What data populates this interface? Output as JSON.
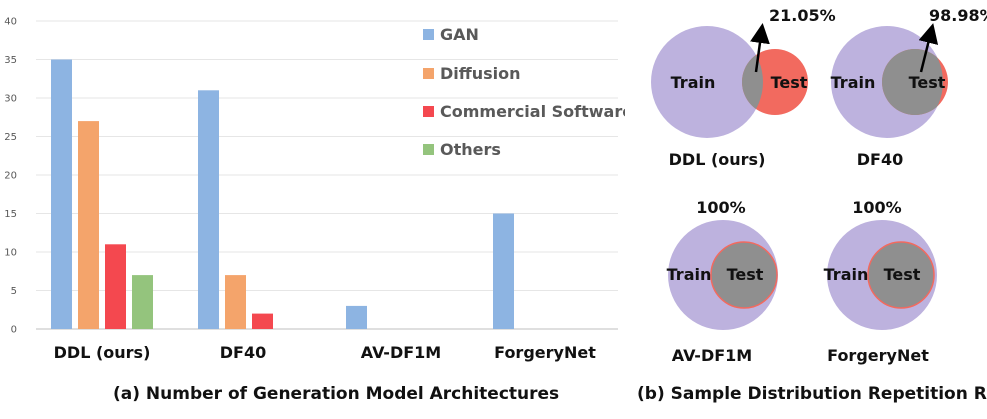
{
  "chart_data": [
    {
      "type": "bar",
      "title": "(a) Number of Generation Model Architectures",
      "categories": [
        "DDL (ours)",
        "DF40",
        "AV-DF1M",
        "ForgeryNet"
      ],
      "series": [
        {
          "name": "GAN",
          "color": "#8db4e2",
          "values": [
            35,
            31,
            3,
            15
          ]
        },
        {
          "name": "Diffusion",
          "color": "#f4a46b",
          "values": [
            27,
            7,
            0,
            0
          ]
        },
        {
          "name": "Commercial Software",
          "color": "#f4484f",
          "values": [
            11,
            2,
            0,
            0
          ]
        },
        {
          "name": "Others",
          "color": "#94c47d",
          "values": [
            7,
            0,
            0,
            0
          ]
        }
      ],
      "ylim": [
        0,
        40
      ],
      "yticks": [
        0,
        5,
        10,
        15,
        20,
        25,
        30,
        35,
        40
      ],
      "xlabel": "",
      "ylabel": "",
      "legend": "top-right"
    },
    {
      "type": "venn",
      "title": "(b) Sample Distribution Repetition Rate",
      "train_label": "Train",
      "test_label": "Test",
      "colors": {
        "train": "#bdb2de",
        "test": "#f26a5f",
        "overlap": "#8f8f8f",
        "test_outline": "#f26a5f",
        "arrow": "#000000"
      },
      "datasets": [
        {
          "name": "DDL (ours)",
          "repetition_rate": "21.05%"
        },
        {
          "name": "DF40",
          "repetition_rate": "98.98%"
        },
        {
          "name": "AV-DF1M",
          "repetition_rate": "100%"
        },
        {
          "name": "ForgeryNet",
          "repetition_rate": "100%"
        }
      ]
    }
  ]
}
